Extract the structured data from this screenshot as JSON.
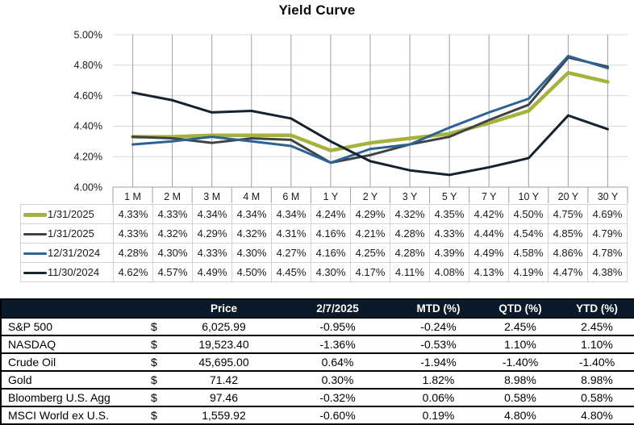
{
  "chart": {
    "title": "Yield Curve",
    "y_ticks": [
      "5.00%",
      "4.80%",
      "4.60%",
      "4.40%",
      "4.20%",
      "4.00%"
    ]
  },
  "chart_data": {
    "type": "line",
    "title": "Yield Curve",
    "categories": [
      "1 M",
      "2 M",
      "3 M",
      "4 M",
      "6 M",
      "1 Y",
      "2 Y",
      "3 Y",
      "5 Y",
      "7 Y",
      "10 Y",
      "20 Y",
      "30 Y"
    ],
    "series": [
      {
        "name": "1/31/2025",
        "color": "#a5b23b",
        "line_width": 4.5,
        "values": [
          4.33,
          4.33,
          4.34,
          4.34,
          4.34,
          4.24,
          4.29,
          4.32,
          4.35,
          4.42,
          4.5,
          4.75,
          4.69
        ]
      },
      {
        "name": "1/31/2025",
        "color": "#3f4347",
        "line_width": 3,
        "values": [
          4.33,
          4.32,
          4.29,
          4.32,
          4.31,
          4.16,
          4.21,
          4.28,
          4.33,
          4.44,
          4.54,
          4.85,
          4.79
        ]
      },
      {
        "name": "12/31/2024",
        "color": "#2d6295",
        "line_width": 3,
        "values": [
          4.28,
          4.3,
          4.33,
          4.3,
          4.27,
          4.16,
          4.25,
          4.28,
          4.39,
          4.49,
          4.58,
          4.86,
          4.78
        ]
      },
      {
        "name": "11/30/2024",
        "color": "#15222f",
        "line_width": 3,
        "values": [
          4.62,
          4.57,
          4.49,
          4.5,
          4.45,
          4.3,
          4.17,
          4.11,
          4.08,
          4.13,
          4.19,
          4.47,
          4.38
        ]
      }
    ],
    "ylim": [
      4.0,
      5.0
    ],
    "y_tick_step": 0.2,
    "value_suffix": "%",
    "grid": true,
    "legend_position": "table-below"
  },
  "colors": {
    "grid_light": "#d9d9d9",
    "grid_dark": "#9aa0a5",
    "header_bg": "#0b1a2a",
    "header_text": "#ffffff"
  },
  "summary_table": {
    "headers": [
      "",
      "Price",
      "2/7/2025",
      "MTD (%)",
      "QTD (%)",
      "YTD (%)"
    ],
    "currency_symbol": "$",
    "rows": [
      {
        "name": "S&P 500",
        "price": "6,025.99",
        "day": "-0.95%",
        "mtd": "-0.24%",
        "qtd": "2.45%",
        "ytd": "2.45%"
      },
      {
        "name": "NASDAQ",
        "price": "19,523.40",
        "day": "-1.36%",
        "mtd": "-0.53%",
        "qtd": "1.10%",
        "ytd": "1.10%"
      },
      {
        "name": "Crude Oil",
        "price": "45,695.00",
        "day": "0.64%",
        "mtd": "-1.94%",
        "qtd": "-1.40%",
        "ytd": "-1.40%"
      },
      {
        "name": "Gold",
        "price": "71.42",
        "day": "0.30%",
        "mtd": "1.82%",
        "qtd": "8.98%",
        "ytd": "8.98%"
      },
      {
        "name": "Bloomberg U.S. Agg",
        "price": "97.46",
        "day": "-0.32%",
        "mtd": "0.06%",
        "qtd": "0.58%",
        "ytd": "0.58%"
      },
      {
        "name": "MSCI World ex U.S.",
        "price": "1,559.92",
        "day": "-0.60%",
        "mtd": "0.19%",
        "qtd": "4.80%",
        "ytd": "4.80%"
      }
    ]
  }
}
